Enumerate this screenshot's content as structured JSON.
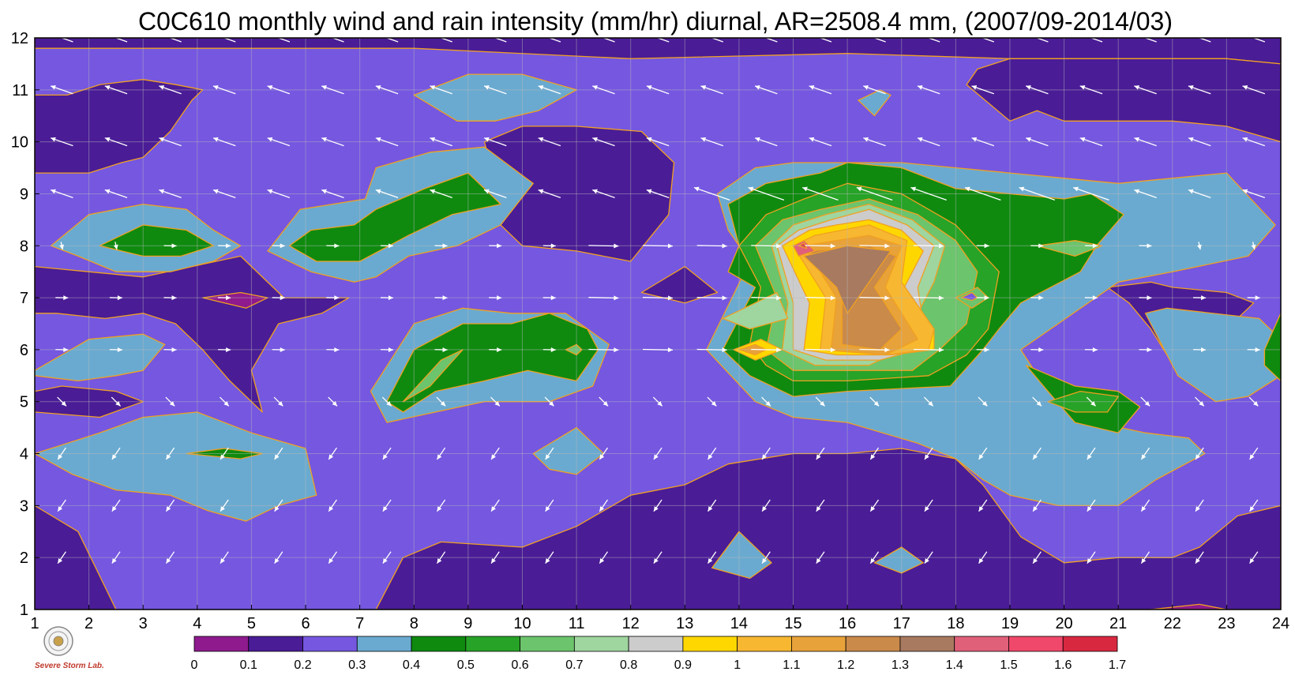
{
  "chart_data": {
    "type": "contour",
    "title": "C0C610 monthly wind and rain intensity (mm/hr) diurnal, AR=2508.4 mm, (2007/09-2014/03)",
    "xlabel": "",
    "ylabel": "",
    "xlim": [
      1,
      24
    ],
    "ylim": [
      1,
      12
    ],
    "x_ticks": [
      "1",
      "2",
      "3",
      "4",
      "5",
      "6",
      "7",
      "8",
      "9",
      "10",
      "11",
      "12",
      "13",
      "14",
      "15",
      "16",
      "17",
      "18",
      "19",
      "20",
      "21",
      "22",
      "23",
      "24"
    ],
    "y_ticks": [
      "1",
      "2",
      "3",
      "4",
      "5",
      "6",
      "7",
      "8",
      "9",
      "10",
      "11",
      "12"
    ],
    "grid": true,
    "colorbar": {
      "levels": [
        "0",
        "0.1",
        "0.2",
        "0.3",
        "0.4",
        "0.5",
        "0.6",
        "0.7",
        "0.8",
        "0.9",
        "1",
        "1.1",
        "1.2",
        "1.3",
        "1.4",
        "1.5",
        "1.6",
        "1.7"
      ],
      "colors": [
        "#8e1a8e",
        "#4a1c96",
        "#7557e0",
        "#6aaad0",
        "#0f8a0f",
        "#27a327",
        "#6cc46c",
        "#9fd59f",
        "#cccccc",
        "#ffd700",
        "#f7b731",
        "#e8a23a",
        "#c98a4a",
        "#a87a60",
        "#e0607a",
        "#f0486a",
        "#d82840"
      ]
    },
    "contour_line_color": "#f0a020",
    "wind_vector_color": "#ffffff",
    "logo_caption": "Severe Storm Lab."
  }
}
